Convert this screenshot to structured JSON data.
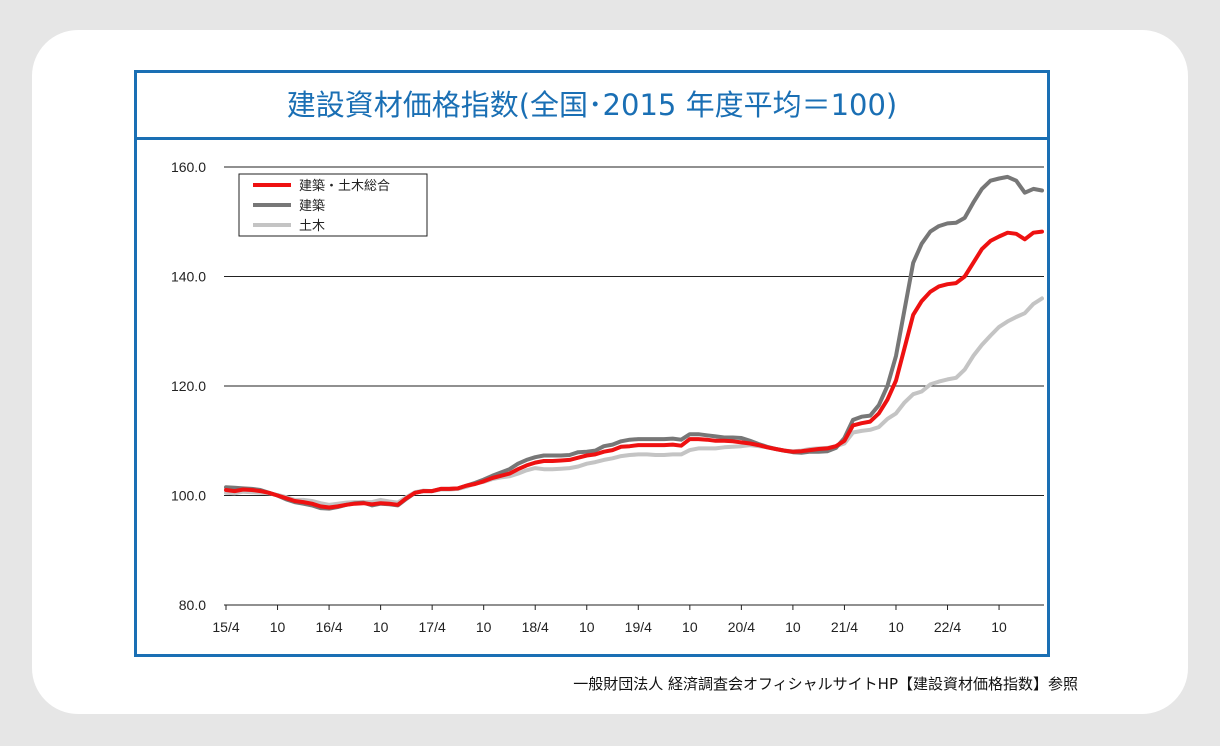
{
  "chart_data": {
    "type": "line",
    "title": "建設資材価格指数(全国･2015 年度平均＝100)",
    "xlabel": "",
    "ylabel": "",
    "ylim": [
      80,
      160
    ],
    "yticks": [
      "80.0",
      "100.0",
      "120.0",
      "140.0",
      "160.0"
    ],
    "x_tick_labels": [
      "15/4",
      "10",
      "16/4",
      "10",
      "17/4",
      "10",
      "18/4",
      "10",
      "19/4",
      "10",
      "20/4",
      "10",
      "21/4",
      "10",
      "22/4",
      "10"
    ],
    "grid": true,
    "legend_position": "top-left",
    "series": [
      {
        "name": "建築・土木総合",
        "color": "#ee1111",
        "values": [
          101.0,
          100.8,
          101.1,
          101.0,
          100.8,
          100.5,
          100.0,
          99.5,
          99.0,
          98.8,
          98.5,
          98.0,
          97.8,
          98.0,
          98.3,
          98.5,
          98.6,
          98.4,
          98.6,
          98.5,
          98.3,
          99.5,
          100.5,
          100.8,
          100.8,
          101.2,
          101.2,
          101.3,
          101.8,
          102.1,
          102.6,
          103.2,
          103.6,
          104.0,
          104.8,
          105.5,
          106.0,
          106.3,
          106.3,
          106.4,
          106.5,
          106.9,
          107.3,
          107.5,
          108.0,
          108.3,
          108.9,
          109.0,
          109.2,
          109.2,
          109.2,
          109.2,
          109.3,
          109.1,
          110.3,
          110.3,
          110.2,
          110.0,
          110.0,
          109.9,
          109.7,
          109.5,
          109.2,
          108.8,
          108.5,
          108.2,
          108.0,
          108.1,
          108.3,
          108.5,
          108.6,
          109.0,
          110.0,
          112.8,
          113.2,
          113.5,
          115.0,
          117.5,
          121.0,
          127.0,
          133.0,
          135.5,
          137.2,
          138.2,
          138.6,
          138.8,
          140.0,
          142.5,
          145.0,
          146.5,
          147.3,
          148.0,
          147.8,
          146.8,
          148.0,
          148.2
        ]
      },
      {
        "name": "建築",
        "color": "#777777",
        "values": [
          101.5,
          101.4,
          101.3,
          101.2,
          101.0,
          100.5,
          100.0,
          99.3,
          98.8,
          98.5,
          98.2,
          97.7,
          97.6,
          97.9,
          98.3,
          98.6,
          98.7,
          98.2,
          98.5,
          98.4,
          98.2,
          99.4,
          100.5,
          100.8,
          100.8,
          101.2,
          101.2,
          101.3,
          101.8,
          102.3,
          102.9,
          103.6,
          104.2,
          104.8,
          105.8,
          106.5,
          107.0,
          107.3,
          107.3,
          107.3,
          107.4,
          107.9,
          108.0,
          108.2,
          109.0,
          109.3,
          109.9,
          110.2,
          110.3,
          110.3,
          110.3,
          110.3,
          110.4,
          110.2,
          111.2,
          111.2,
          111.0,
          110.8,
          110.6,
          110.6,
          110.5,
          110.0,
          109.4,
          108.9,
          108.5,
          108.2,
          107.9,
          107.8,
          108.0,
          108.0,
          108.1,
          108.7,
          110.5,
          113.8,
          114.4,
          114.6,
          116.5,
          120.0,
          125.5,
          134.0,
          142.5,
          146.0,
          148.2,
          149.2,
          149.7,
          149.8,
          150.7,
          153.5,
          156.0,
          157.5,
          157.9,
          158.2,
          157.5,
          155.3,
          156.0,
          155.7
        ]
      },
      {
        "name": "土木",
        "color": "#c4c4c4",
        "values": [
          100.5,
          100.4,
          100.7,
          100.6,
          100.5,
          100.4,
          100.1,
          99.7,
          99.2,
          99.2,
          99.0,
          98.6,
          98.3,
          98.5,
          98.7,
          98.8,
          98.8,
          98.8,
          99.2,
          98.9,
          98.7,
          99.7,
          100.6,
          100.9,
          100.8,
          101.1,
          101.1,
          101.2,
          101.6,
          102.2,
          102.5,
          103.0,
          103.3,
          103.5,
          104.0,
          104.6,
          105.0,
          104.8,
          104.8,
          104.9,
          105.0,
          105.3,
          105.8,
          106.1,
          106.5,
          106.8,
          107.2,
          107.4,
          107.5,
          107.5,
          107.4,
          107.4,
          107.5,
          107.5,
          108.3,
          108.6,
          108.6,
          108.6,
          108.8,
          108.9,
          109.0,
          109.2,
          109.0,
          108.8,
          108.5,
          108.2,
          108.1,
          108.2,
          108.5,
          108.6,
          108.7,
          109.0,
          109.5,
          111.5,
          111.8,
          112.0,
          112.5,
          114.0,
          115.0,
          117.0,
          118.5,
          119.0,
          120.3,
          120.8,
          121.2,
          121.5,
          123.0,
          125.5,
          127.5,
          129.2,
          130.8,
          131.8,
          132.6,
          133.3,
          135.0,
          136.0
        ]
      }
    ]
  },
  "footer": {
    "source": "一般財団法人 経済調査会オフィシャルサイトHP【建設資材価格指数】参照"
  }
}
